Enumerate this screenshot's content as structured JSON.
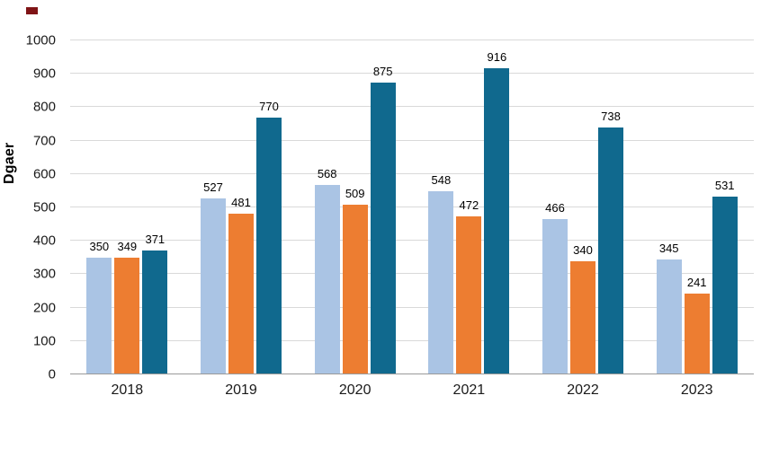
{
  "chart_data": {
    "type": "bar",
    "title": "",
    "categories": [
      "2018",
      "2019",
      "2020",
      "2021",
      "2022",
      "2023"
    ],
    "series": [
      {
        "name": "series-light-blue",
        "color": "#aac4e4",
        "values": [
          350,
          527,
          568,
          548,
          466,
          345
        ]
      },
      {
        "name": "series-orange",
        "color": "#ed7d31",
        "values": [
          349,
          481,
          509,
          472,
          340,
          241
        ]
      },
      {
        "name": "series-dark-teal",
        "color": "#10698e",
        "values": [
          371,
          770,
          875,
          916,
          738,
          531
        ]
      }
    ],
    "xlabel": "",
    "ylabel": "Dgaer",
    "ylim": [
      0,
      1000
    ],
    "ytick_step": 100,
    "grid": true,
    "legend_position": "none",
    "data_labels": true
  },
  "decorations": {
    "top_left_marker_color": "#7f1416"
  }
}
